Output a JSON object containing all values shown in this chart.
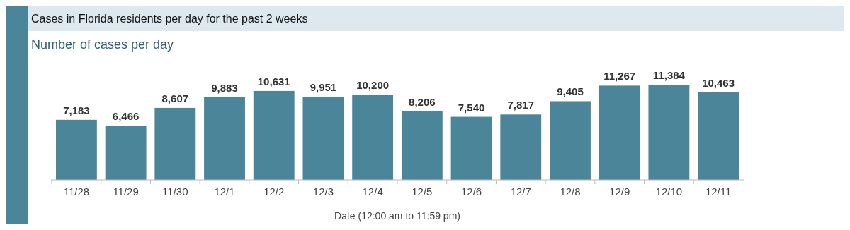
{
  "chart_data": {
    "type": "bar",
    "title": "Cases in Florida residents per day for the past 2 weeks",
    "subtitle": "Number of cases per day",
    "xlabel": "Date (12:00 am to 11:59 pm)",
    "categories": [
      "11/28",
      "11/29",
      "11/30",
      "12/1",
      "12/2",
      "12/3",
      "12/4",
      "12/5",
      "12/6",
      "12/7",
      "12/8",
      "12/9",
      "12/10",
      "12/11"
    ],
    "values": [
      7183,
      6466,
      8607,
      9883,
      10631,
      9951,
      10200,
      8206,
      7540,
      7817,
      9405,
      11267,
      11384,
      10463
    ],
    "value_labels": [
      "7,183",
      "6,466",
      "8,607",
      "9,883",
      "10,631",
      "9,951",
      "10,200",
      "8,206",
      "7,540",
      "7,817",
      "9,405",
      "11,267",
      "11,384",
      "10,463"
    ],
    "color": "#4a8599"
  }
}
